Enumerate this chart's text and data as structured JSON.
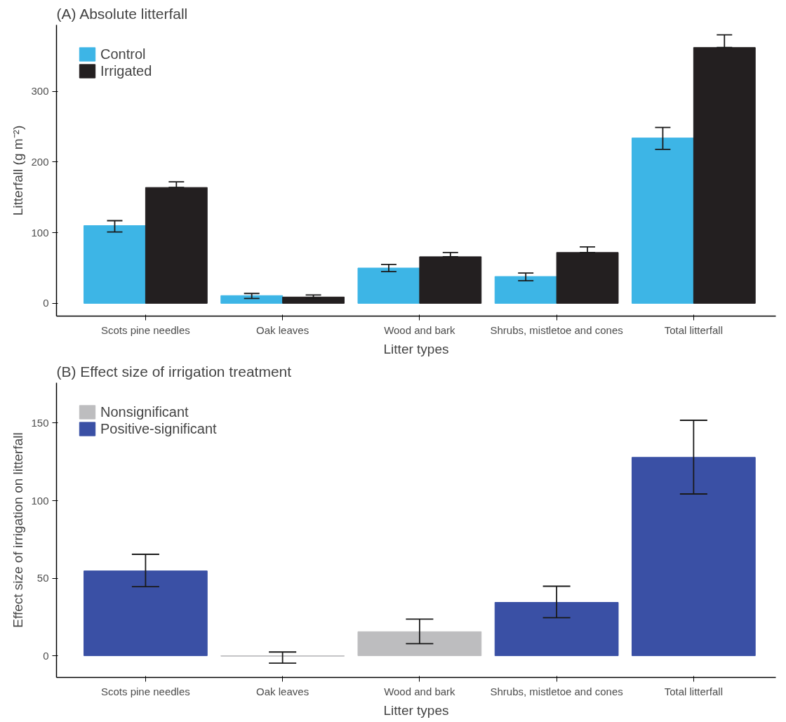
{
  "chart_data": [
    {
      "type": "bar",
      "title": "(A) Absolute litterfall",
      "xlabel": "Litter types",
      "ylabel": "Litterfall (g m⁻²)",
      "categories": [
        "Scots pine needles",
        "Oak leaves",
        "Wood and bark",
        "Shrubs, mistletoe and cones",
        "Total litterfall"
      ],
      "series": [
        {
          "name": "Control",
          "color": "#3db5e6",
          "values": [
            110,
            11,
            50,
            38,
            234
          ],
          "errors": [
            [
              101,
              117
            ],
            [
              7,
              14
            ],
            [
              45,
              55
            ],
            [
              32,
              43
            ],
            [
              218,
              249
            ]
          ]
        },
        {
          "name": "Irrigated",
          "color": "#231f20",
          "values": [
            164,
            9,
            66,
            72,
            362
          ],
          "errors": [
            [
              164,
              172
            ],
            [
              7,
              12
            ],
            [
              66,
              72
            ],
            [
              72,
              80
            ],
            [
              362,
              380
            ]
          ]
        }
      ],
      "ylim": [
        -18,
        394
      ],
      "yticks": [
        0,
        100,
        200,
        300
      ],
      "grid": false,
      "legend": "top left"
    },
    {
      "type": "bar",
      "title": "(B) Effect size of irrigation treatment",
      "xlabel": "Litter types",
      "ylabel": "Effect size of irrigation on litterfall",
      "categories": [
        "Scots pine needles",
        "Oak leaves",
        "Wood and bark",
        "Shrubs, mistletoe and cones",
        "Total litterfall"
      ],
      "stacked": true,
      "series": [
        {
          "name": "Nonsignificant",
          "color": "#bdbdbf",
          "values": [
            null,
            -0.3,
            15.5,
            null,
            null
          ],
          "errors": [
            null,
            [
              -4.8,
              2.4
            ],
            [
              7.8,
              23.6
            ],
            null,
            null
          ]
        },
        {
          "name": "Positive-significant",
          "color": "#3a50a5",
          "values": [
            54.7,
            null,
            null,
            34.4,
            127.9
          ],
          "errors": [
            [
              44.5,
              65.4
            ],
            null,
            null,
            [
              24.5,
              44.8
            ],
            [
              104.3,
              151.8
            ]
          ]
        }
      ],
      "ylim": [
        -14,
        176
      ],
      "yticks": [
        0,
        50,
        100,
        150
      ],
      "grid": false,
      "legend": "top left"
    }
  ]
}
